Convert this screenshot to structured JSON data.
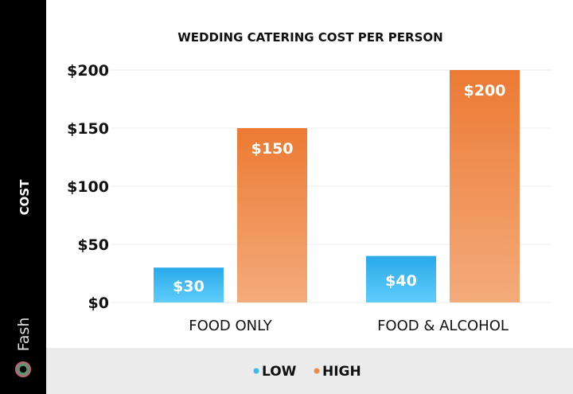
{
  "brand": {
    "logo_text": "Fash"
  },
  "chart_data": {
    "type": "bar",
    "title": "WEDDING CATERING COST PER PERSON",
    "ylabel": "COST",
    "xlabel": "",
    "categories": [
      "FOOD ONLY",
      "FOOD & ALCOHOL"
    ],
    "series": [
      {
        "name": "LOW",
        "values": [
          30,
          40
        ],
        "color": "#3ab8ef",
        "data_labels": [
          "$30",
          "$40"
        ]
      },
      {
        "name": "HIGH",
        "values": [
          150,
          200
        ],
        "color": "#ef8a45",
        "data_labels": [
          "$150",
          "$200"
        ]
      }
    ],
    "ylim": [
      0,
      200
    ],
    "yticks": [
      0,
      50,
      100,
      150,
      200
    ],
    "ytick_labels": [
      "$0",
      "$50",
      "$100",
      "$150",
      "$200"
    ],
    "grid": true,
    "legend_placement": "bottom"
  }
}
